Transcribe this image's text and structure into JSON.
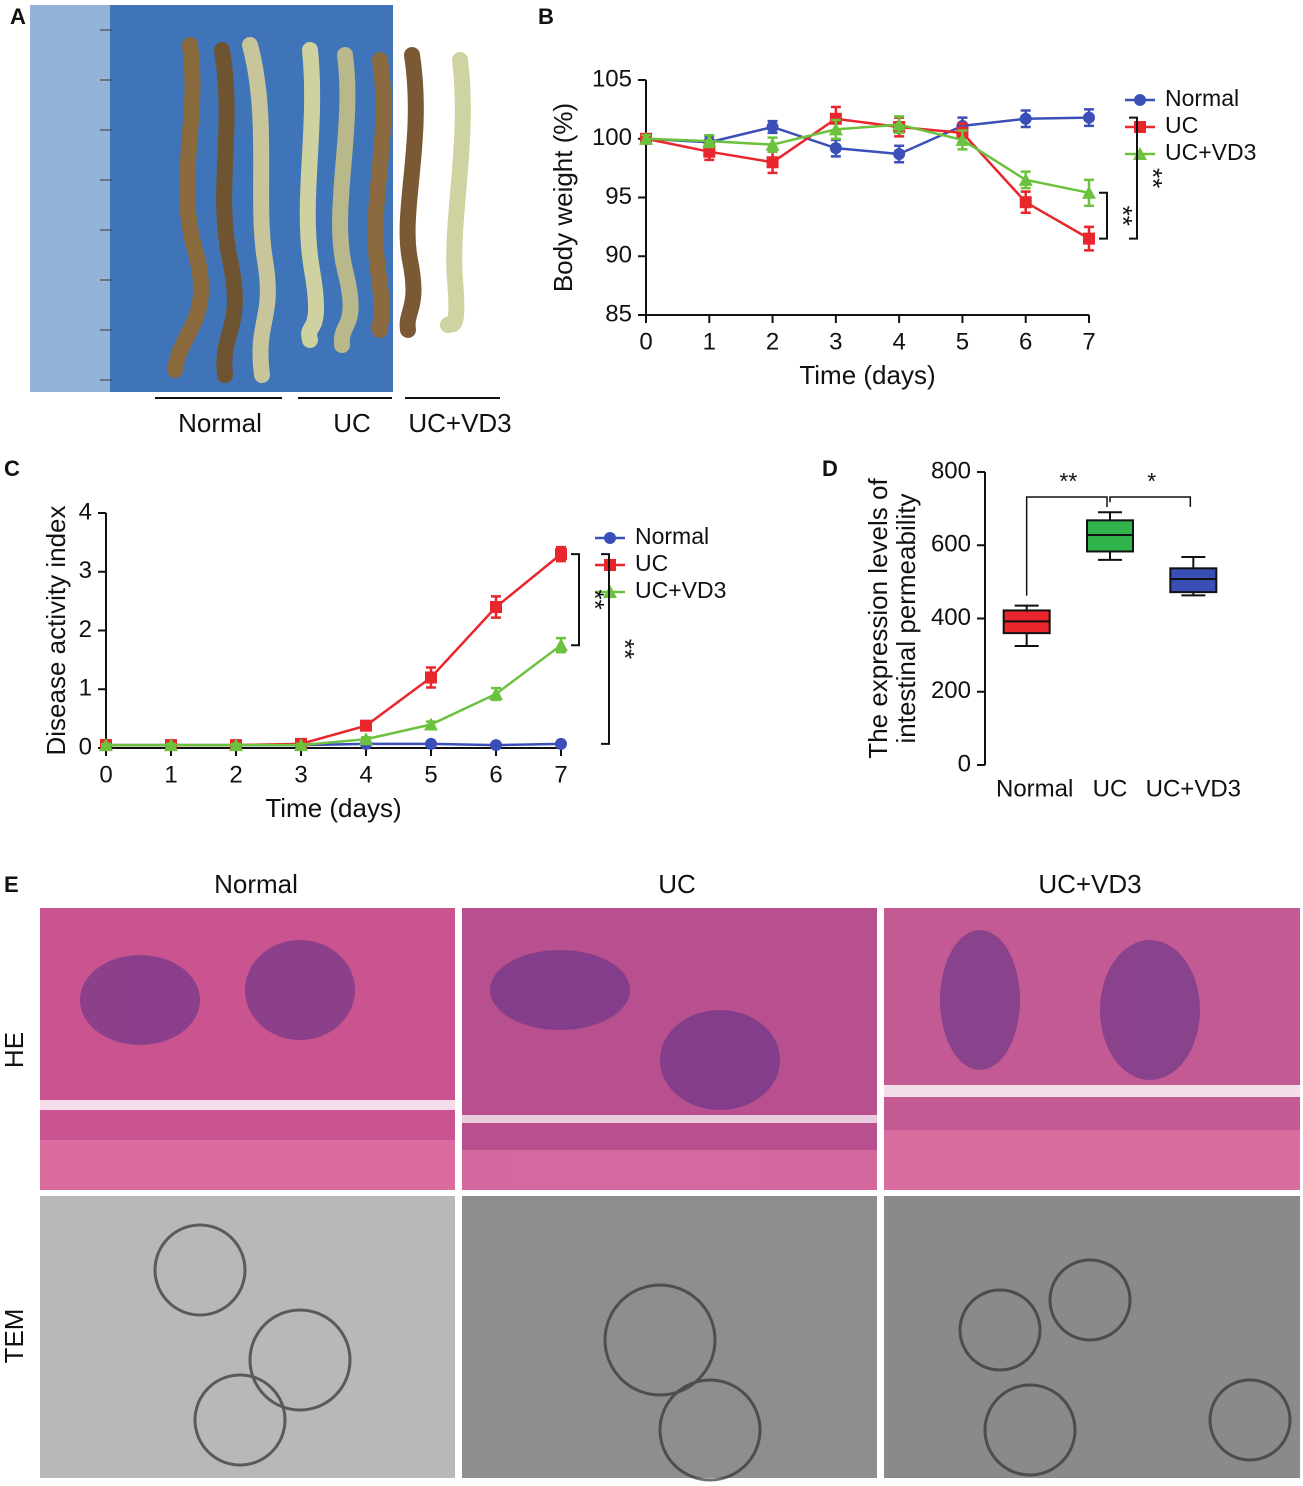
{
  "panels": {
    "labels": [
      "A",
      "B",
      "C",
      "D",
      "E"
    ]
  },
  "photo_a": {
    "groups": [
      "Normal",
      "UC",
      "UC+VD3"
    ]
  },
  "chart_data": [
    {
      "type": "line",
      "xlabel": "Time (days)",
      "ylabel": "Body weight (%)",
      "x": [
        0,
        1,
        2,
        3,
        4,
        5,
        6,
        7
      ],
      "xlim": [
        0,
        7
      ],
      "xticks": [
        0,
        1,
        2,
        3,
        4,
        5,
        6,
        7
      ],
      "ylim": [
        85,
        105
      ],
      "yticks": [
        85,
        90,
        95,
        100,
        105
      ],
      "series": [
        {
          "name": "Normal",
          "color": "#3b4fb8",
          "marker": "circle",
          "values": [
            100,
            99.7,
            101,
            99.2,
            98.7,
            101.1,
            101.7,
            101.8
          ],
          "errors": [
            0.3,
            0.5,
            0.5,
            0.7,
            0.7,
            0.7,
            0.7,
            0.7
          ]
        },
        {
          "name": "UC",
          "color": "#e8262b",
          "marker": "square",
          "values": [
            100,
            98.9,
            98.0,
            101.7,
            101.0,
            100.5,
            94.6,
            91.5
          ],
          "errors": [
            0.3,
            0.7,
            0.9,
            1.0,
            0.8,
            0.8,
            0.9,
            1.0
          ]
        },
        {
          "name": "UC+VD3",
          "color": "#6cc13e",
          "marker": "triangle",
          "values": [
            100,
            99.8,
            99.5,
            100.8,
            101.2,
            99.9,
            96.5,
            95.4
          ],
          "errors": [
            0.3,
            0.5,
            0.6,
            0.8,
            0.7,
            0.8,
            0.7,
            1.1
          ]
        }
      ],
      "legend": "right",
      "annotations": [
        "**",
        "**"
      ]
    },
    {
      "type": "line",
      "xlabel": "Time (days)",
      "ylabel": "Disease activity index",
      "x": [
        0,
        1,
        2,
        3,
        4,
        5,
        6,
        7
      ],
      "xlim": [
        0,
        7
      ],
      "xticks": [
        0,
        1,
        2,
        3,
        4,
        5,
        6,
        7
      ],
      "ylim": [
        0,
        4
      ],
      "yticks": [
        0,
        1,
        2,
        3,
        4
      ],
      "series": [
        {
          "name": "Normal",
          "color": "#3b4fb8",
          "marker": "circle",
          "values": [
            0.05,
            0.05,
            0.05,
            0.05,
            0.07,
            0.07,
            0.05,
            0.07
          ],
          "errors": [
            0.02,
            0.02,
            0.02,
            0.02,
            0.02,
            0.02,
            0.02,
            0.02
          ]
        },
        {
          "name": "UC",
          "color": "#e8262b",
          "marker": "square",
          "values": [
            0.05,
            0.05,
            0.05,
            0.07,
            0.38,
            1.2,
            2.4,
            3.3
          ],
          "errors": [
            0.02,
            0.02,
            0.02,
            0.02,
            0.05,
            0.17,
            0.18,
            0.12
          ]
        },
        {
          "name": "UC+VD3",
          "color": "#6cc13e",
          "marker": "triangle",
          "values": [
            0.05,
            0.05,
            0.05,
            0.05,
            0.15,
            0.4,
            0.92,
            1.75
          ],
          "errors": [
            0.02,
            0.02,
            0.02,
            0.02,
            0.03,
            0.05,
            0.1,
            0.12
          ]
        }
      ],
      "legend": "right",
      "annotations": [
        "**",
        "**"
      ]
    },
    {
      "type": "box",
      "ylabel": [
        "The expression levels of",
        "intestinal permeability"
      ],
      "categories": [
        "Normal",
        "UC",
        "UC+VD3"
      ],
      "colors": [
        "#e8262b",
        "#2fb34a",
        "#3a4fb5"
      ],
      "min": [
        325,
        560,
        463
      ],
      "q1": [
        360,
        583,
        472
      ],
      "median": [
        392,
        628,
        508
      ],
      "q3": [
        422,
        668,
        537
      ],
      "max": [
        435,
        690,
        568
      ],
      "ylim": [
        0,
        800
      ],
      "yticks": [
        0,
        200,
        400,
        600,
        800
      ],
      "annotations": [
        "**",
        "*"
      ]
    }
  ],
  "histology": {
    "columns": [
      "Normal",
      "UC",
      "UC+VD3"
    ],
    "rows": [
      "HE",
      "TEM"
    ]
  }
}
